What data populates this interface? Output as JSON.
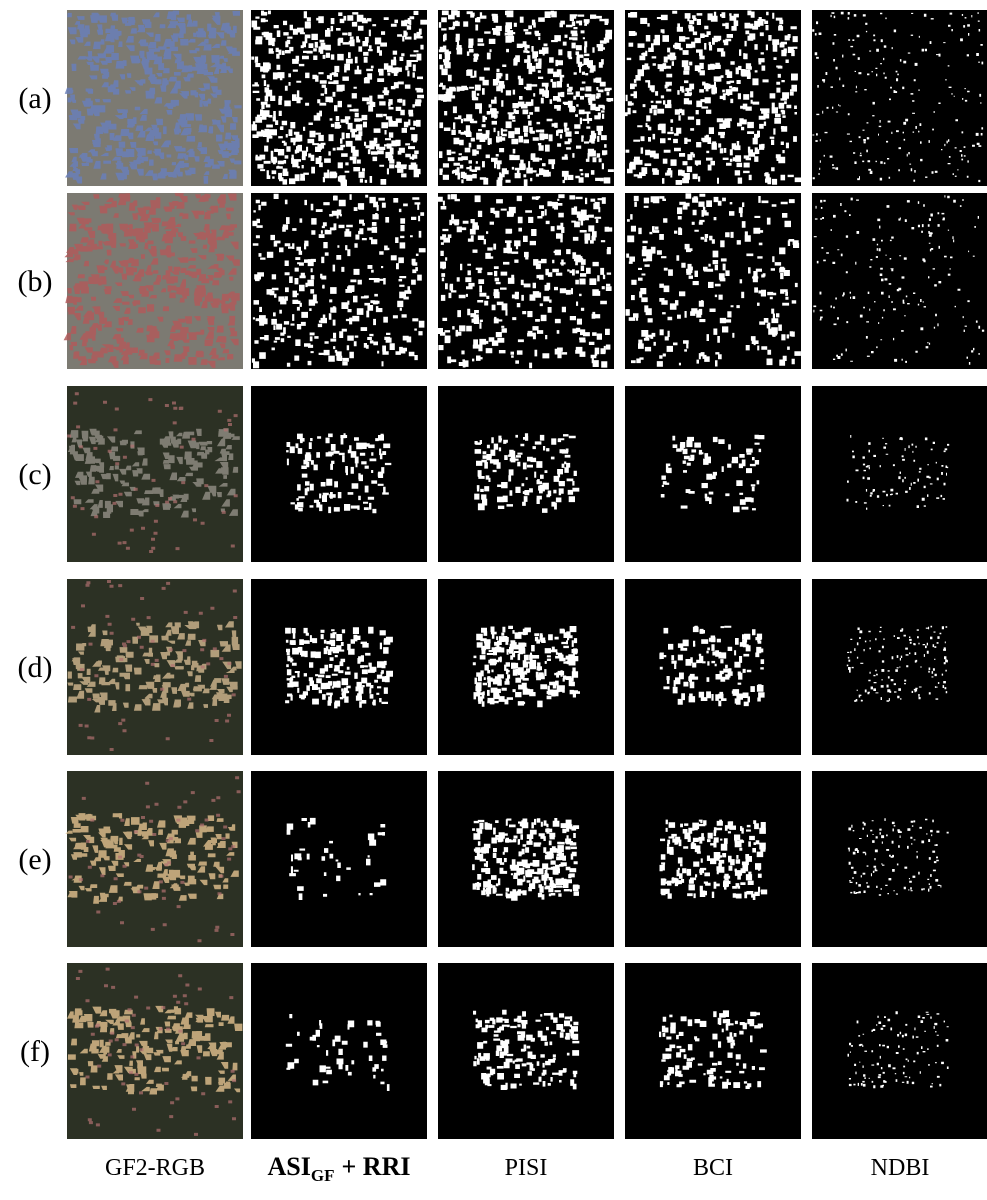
{
  "row_labels": [
    "(a)",
    "(b)",
    "(c)",
    "(d)",
    "(e)",
    "(f)"
  ],
  "column_labels": [
    {
      "text": "GF2-RGB"
    },
    {
      "base": "ASI",
      "subscript": "GF",
      "suffix": "+ RRI"
    },
    {
      "text": "PISI"
    },
    {
      "text": "BCI"
    },
    {
      "text": "NDBI"
    }
  ]
}
